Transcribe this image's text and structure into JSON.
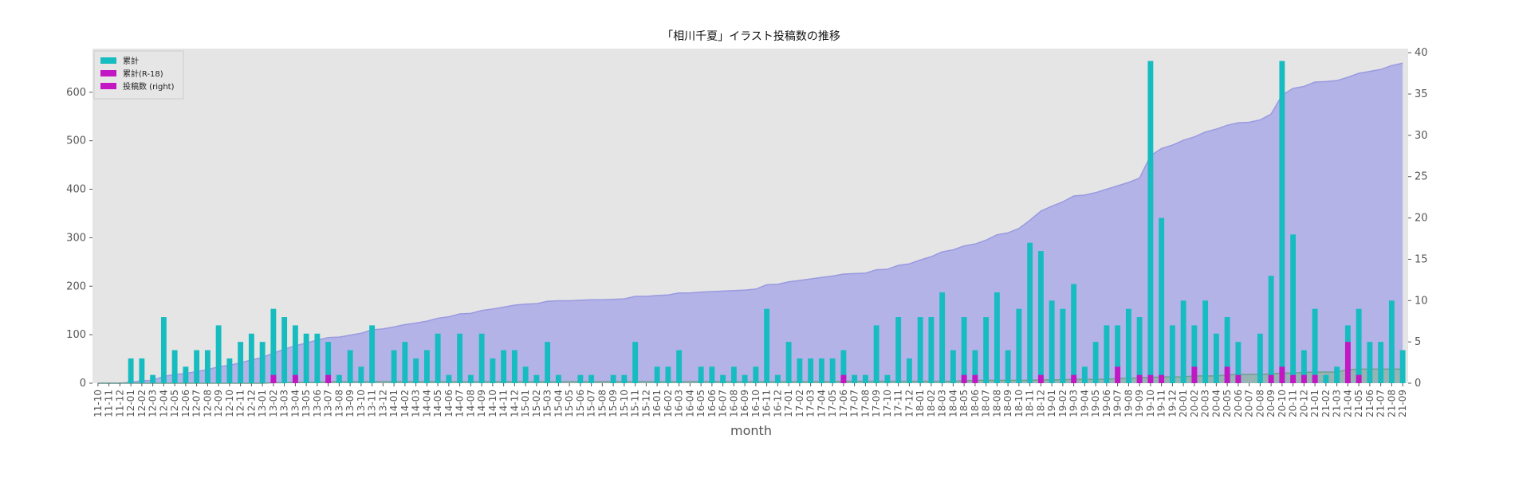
{
  "chart_data": {
    "type": "bar",
    "title": "「相川千夏」イラスト投稿数の推移",
    "xlabel": "month",
    "ylabel": "",
    "ylabel_right": "",
    "ylim": [
      0,
      690
    ],
    "ylim_right": [
      0,
      40.5
    ],
    "yticks": [
      0,
      100,
      200,
      300,
      400,
      500,
      600
    ],
    "yticks_right": [
      0,
      5,
      10,
      15,
      20,
      25,
      30,
      35,
      40
    ],
    "grid": false,
    "background": "#e5e5e5",
    "legend_position": "top-left",
    "categories": [
      "11-10",
      "11-11",
      "11-12",
      "12-01",
      "12-02",
      "12-03",
      "12-04",
      "12-05",
      "12-06",
      "12-07",
      "12-08",
      "12-09",
      "12-10",
      "12-11",
      "12-12",
      "13-01",
      "13-02",
      "13-03",
      "13-04",
      "13-05",
      "13-06",
      "13-07",
      "13-08",
      "13-09",
      "13-10",
      "13-11",
      "13-12",
      "14-01",
      "14-02",
      "14-03",
      "14-04",
      "14-05",
      "14-06",
      "14-07",
      "14-08",
      "14-09",
      "14-10",
      "14-11",
      "14-12",
      "15-01",
      "15-02",
      "15-03",
      "15-04",
      "15-05",
      "15-06",
      "15-07",
      "15-08",
      "15-09",
      "15-10",
      "15-11",
      "15-12",
      "16-01",
      "16-02",
      "16-03",
      "16-04",
      "16-05",
      "16-06",
      "16-07",
      "16-08",
      "16-09",
      "16-10",
      "16-11",
      "16-12",
      "17-01",
      "17-02",
      "17-03",
      "17-04",
      "17-05",
      "17-06",
      "17-07",
      "17-08",
      "17-09",
      "17-10",
      "17-11",
      "17-12",
      "18-01",
      "18-02",
      "18-03",
      "18-04",
      "18-05",
      "18-06",
      "18-07",
      "18-08",
      "18-09",
      "18-10",
      "18-11",
      "18-12",
      "19-01",
      "19-02",
      "19-03",
      "19-04",
      "19-05",
      "19-06",
      "19-07",
      "19-08",
      "19-09",
      "19-10",
      "19-11",
      "19-12",
      "20-01",
      "20-02",
      "20-03",
      "20-04",
      "20-05",
      "20-06",
      "20-07",
      "20-08",
      "20-09",
      "20-10",
      "20-11",
      "20-12",
      "21-01",
      "21-02",
      "21-03",
      "21-04",
      "21-05",
      "21-06",
      "21-07",
      "21-08",
      "21-09"
    ],
    "series": [
      {
        "name": "累計",
        "kind": "area",
        "axis": "left",
        "color": "#b3b3e8",
        "edge_color": "#9a9ae0",
        "values": [
          0,
          0,
          0,
          2,
          5,
          6,
          14,
          18,
          20,
          24,
          28,
          34,
          37,
          42,
          48,
          53,
          62,
          70,
          77,
          83,
          89,
          94,
          95,
          99,
          103,
          110,
          112,
          116,
          121,
          124,
          128,
          134,
          137,
          143,
          144,
          150,
          153,
          157,
          161,
          163,
          164,
          169,
          170,
          170,
          171,
          172,
          172,
          173,
          174,
          179,
          179,
          181,
          182,
          186,
          186,
          188,
          189,
          190,
          191,
          192,
          194,
          203,
          204,
          209,
          212,
          215,
          218,
          221,
          225,
          226,
          227,
          234,
          235,
          243,
          246,
          254,
          261,
          271,
          275,
          283,
          287,
          295,
          306,
          310,
          319,
          336,
          355,
          365,
          374,
          386,
          388,
          393,
          400,
          407,
          414,
          423,
          469,
          484,
          491,
          501,
          508,
          518,
          524,
          532,
          537,
          538,
          543,
          555,
          594,
          608,
          612,
          621,
          622,
          624,
          631,
          639,
          643,
          647,
          655,
          660
        ]
      },
      {
        "name": "累計(R-18)",
        "kind": "area",
        "axis": "left",
        "color": "#8fb3a3",
        "edge_color": "#6fa08f",
        "values": [
          0,
          0,
          0,
          0,
          0,
          0,
          0,
          0,
          0,
          0,
          0,
          0,
          0,
          0,
          0,
          0,
          1,
          1,
          2,
          2,
          2,
          3,
          3,
          3,
          3,
          3,
          3,
          3,
          3,
          3,
          3,
          3,
          3,
          3,
          3,
          3,
          3,
          3,
          3,
          3,
          3,
          3,
          3,
          3,
          3,
          3,
          3,
          3,
          3,
          3,
          3,
          3,
          3,
          3,
          3,
          3,
          3,
          3,
          3,
          3,
          3,
          3,
          3,
          3,
          3,
          3,
          3,
          3,
          4,
          4,
          4,
          4,
          4,
          4,
          4,
          4,
          4,
          4,
          4,
          5,
          6,
          6,
          6,
          6,
          6,
          6,
          7,
          7,
          7,
          8,
          8,
          8,
          8,
          10,
          10,
          11,
          12,
          13,
          13,
          13,
          15,
          15,
          15,
          17,
          18,
          18,
          18,
          19,
          21,
          21,
          22,
          23,
          23,
          23,
          28,
          29,
          29,
          29,
          29,
          29
        ]
      },
      {
        "name": "投稿数 (right)",
        "kind": "bar",
        "axis": "right",
        "color": "#17bcc0",
        "values": [
          0,
          0,
          0,
          3,
          3,
          1,
          8,
          4,
          2,
          4,
          4,
          7,
          3,
          5,
          6,
          5,
          9,
          8,
          7,
          6,
          6,
          5,
          1,
          4,
          2,
          7,
          0,
          4,
          5,
          3,
          4,
          6,
          1,
          6,
          1,
          6,
          3,
          4,
          4,
          2,
          1,
          5,
          1,
          0,
          1,
          1,
          0,
          1,
          1,
          5,
          0,
          2,
          2,
          4,
          0,
          2,
          2,
          1,
          2,
          1,
          2,
          9,
          1,
          5,
          3,
          3,
          3,
          3,
          4,
          1,
          1,
          7,
          1,
          8,
          3,
          8,
          8,
          11,
          4,
          8,
          4,
          8,
          11,
          4,
          9,
          17,
          16,
          10,
          9,
          12,
          2,
          5,
          7,
          7,
          9,
          8,
          39,
          20,
          7,
          10,
          7,
          10,
          6,
          8,
          5,
          0,
          6,
          13,
          39,
          18,
          4,
          9,
          1,
          2,
          7,
          9,
          5,
          5,
          10,
          4
        ]
      },
      {
        "name": "",
        "kind": "bar",
        "axis": "right",
        "color": "#c417c4",
        "values": [
          0,
          0,
          0,
          0,
          0,
          0,
          0,
          0,
          0,
          0,
          0,
          0,
          0,
          0,
          0,
          0,
          1,
          0,
          1,
          0,
          0,
          1,
          0,
          0,
          0,
          0,
          0,
          0,
          0,
          0,
          0,
          0,
          0,
          0,
          0,
          0,
          0,
          0,
          0,
          0,
          0,
          0,
          0,
          0,
          0,
          0,
          0,
          0,
          0,
          0,
          0,
          0,
          0,
          0,
          0,
          0,
          0,
          0,
          0,
          0,
          0,
          0,
          0,
          0,
          0,
          0,
          0,
          0,
          1,
          0,
          0,
          0,
          0,
          0,
          0,
          0,
          0,
          0,
          0,
          1,
          1,
          0,
          0,
          0,
          0,
          0,
          1,
          0,
          0,
          1,
          0,
          0,
          0,
          2,
          0,
          1,
          1,
          1,
          0,
          0,
          2,
          0,
          0,
          2,
          1,
          0,
          0,
          1,
          2,
          1,
          1,
          1,
          0,
          0,
          5,
          1,
          0,
          0,
          0,
          0
        ]
      }
    ],
    "legend": [
      {
        "label": "累計",
        "color": "#17bcc0"
      },
      {
        "label": "累計(R-18)",
        "color": "#c417c4"
      },
      {
        "label": "投稿数 (right)",
        "color": "#c417c4"
      }
    ]
  }
}
